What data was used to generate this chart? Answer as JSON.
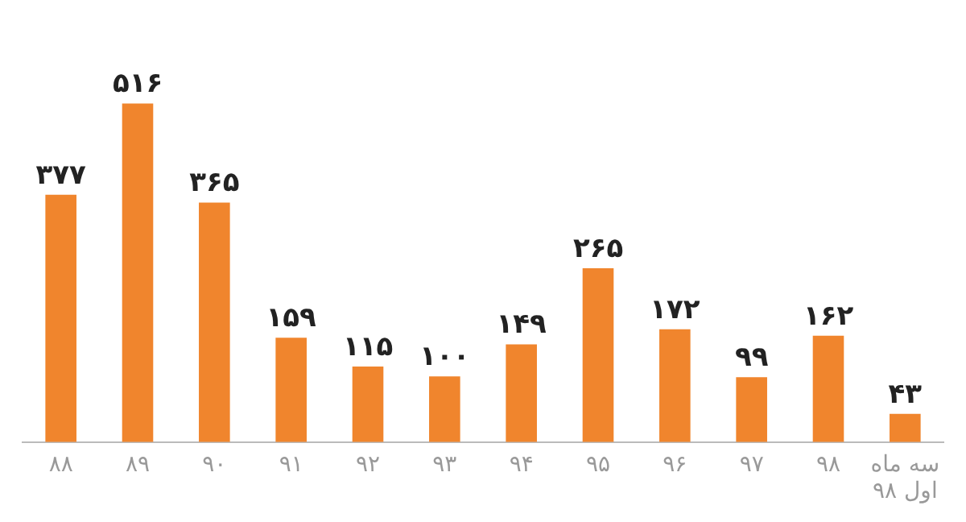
{
  "chart_data": {
    "type": "bar",
    "categories": [
      "۸۸",
      "۸۹",
      "۹۰",
      "۹۱",
      "۹۲",
      "۹۳",
      "۹۴",
      "۹۵",
      "۹۶",
      "۹۷",
      "۹۸",
      "سه ماه اول ۹۸"
    ],
    "values": [
      377,
      516,
      365,
      159,
      115,
      100,
      149,
      265,
      172,
      99,
      162,
      43
    ],
    "value_labels": [
      "۳۷۷",
      "۵۱۶",
      "۳۶۵",
      "۱۵۹",
      "۱۱۵",
      "۱۰۰",
      "۱۴۹",
      "۲۶۵",
      "۱۷۲",
      "۹۹",
      "۱۶۲",
      "۴۳"
    ],
    "color": "#f0852d",
    "grid": false,
    "legend": false
  }
}
